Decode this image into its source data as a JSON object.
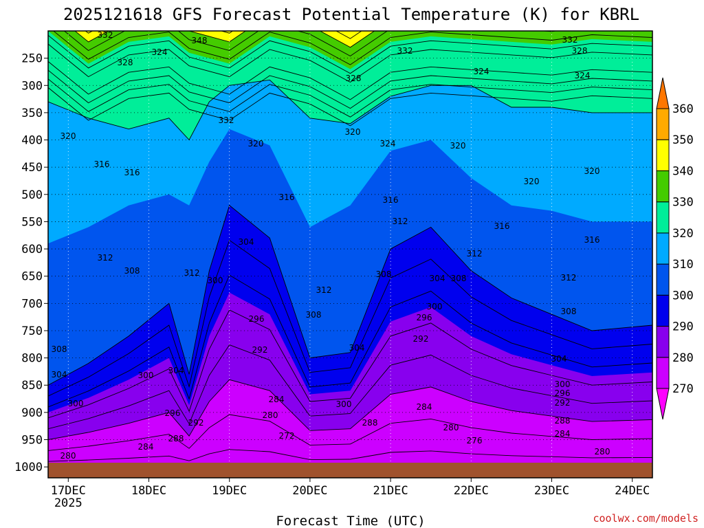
{
  "chart_data": {
    "type": "contour",
    "title": "2025121618 GFS Forecast Potential Temperature (K) for KBRL",
    "xlabel": "Forecast Time (UTC)",
    "ylabel": "",
    "credit": "coolwx.com/models",
    "x_ticks": [
      {
        "label": "17DEC",
        "sublabel": "2025",
        "hour": 6
      },
      {
        "label": "18DEC",
        "hour": 30
      },
      {
        "label": "19DEC",
        "hour": 54
      },
      {
        "label": "20DEC",
        "hour": 78
      },
      {
        "label": "21DEC",
        "hour": 102
      },
      {
        "label": "22DEC",
        "hour": 126
      },
      {
        "label": "23DEC",
        "hour": 150
      },
      {
        "label": "24DEC",
        "hour": 174
      }
    ],
    "xlim_hours": [
      0,
      180
    ],
    "y_ticks": [
      "250",
      "300",
      "350",
      "400",
      "450",
      "500",
      "550",
      "600",
      "650",
      "700",
      "750",
      "800",
      "850",
      "900",
      "950",
      "1000"
    ],
    "ylim_hpa": [
      200,
      1020
    ],
    "colorbar": {
      "levels": [
        "270",
        "280",
        "290",
        "300",
        "310",
        "320",
        "330",
        "340",
        "350",
        "360"
      ],
      "colors": [
        "#ff00ff",
        "#cc00ff",
        "#8800ee",
        "#0000ee",
        "#0055ee",
        "#00aaff",
        "#00ee99",
        "#44cc00",
        "#ffff00",
        "#ffaa00",
        "#ff7700"
      ]
    },
    "contour_interval": 4,
    "fill_interval": 10,
    "profiles": {
      "times": [
        0,
        12,
        24,
        36,
        42,
        48,
        54,
        66,
        78,
        90,
        102,
        114,
        126,
        138,
        150,
        162,
        180
      ],
      "note": "pressure level (hPa) of selected isentropes vs forecast hour",
      "theta_300": [
        850,
        810,
        760,
        700,
        830,
        640,
        520,
        580,
        800,
        790,
        600,
        560,
        640,
        690,
        720,
        750,
        740
      ],
      "theta_310": [
        590,
        560,
        520,
        500,
        520,
        440,
        380,
        410,
        560,
        520,
        420,
        400,
        470,
        520,
        530,
        550,
        550
      ],
      "theta_320": [
        330,
        360,
        380,
        360,
        400,
        330,
        300,
        290,
        360,
        370,
        320,
        300,
        300,
        340,
        340,
        350,
        350
      ],
      "theta_330": [
        200,
        260,
        220,
        210,
        240,
        250,
        260,
        210,
        230,
        270,
        220,
        210,
        215,
        220,
        225,
        215,
        220
      ]
    },
    "contour_labels": [
      {
        "text": "332",
        "x": 153,
        "y": 55
      },
      {
        "text": "324",
        "x": 232,
        "y": 80
      },
      {
        "text": "348",
        "x": 290,
        "y": 63
      },
      {
        "text": "328",
        "x": 182,
        "y": 95
      },
      {
        "text": "332",
        "x": 589,
        "y": 78
      },
      {
        "text": "332",
        "x": 829,
        "y": 62
      },
      {
        "text": "328",
        "x": 843,
        "y": 78
      },
      {
        "text": "324",
        "x": 700,
        "y": 108
      },
      {
        "text": "328",
        "x": 514,
        "y": 118
      },
      {
        "text": "324",
        "x": 847,
        "y": 114
      },
      {
        "text": "332",
        "x": 329,
        "y": 179
      },
      {
        "text": "320",
        "x": 99,
        "y": 202
      },
      {
        "text": "320",
        "x": 513,
        "y": 196
      },
      {
        "text": "324",
        "x": 564,
        "y": 213
      },
      {
        "text": "320",
        "x": 666,
        "y": 216
      },
      {
        "text": "320",
        "x": 372,
        "y": 213
      },
      {
        "text": "316",
        "x": 148,
        "y": 243
      },
      {
        "text": "316",
        "x": 192,
        "y": 255
      },
      {
        "text": "320",
        "x": 773,
        "y": 268
      },
      {
        "text": "320",
        "x": 861,
        "y": 253
      },
      {
        "text": "316",
        "x": 417,
        "y": 291
      },
      {
        "text": "316",
        "x": 568,
        "y": 295
      },
      {
        "text": "312",
        "x": 582,
        "y": 326
      },
      {
        "text": "316",
        "x": 730,
        "y": 333
      },
      {
        "text": "304",
        "x": 358,
        "y": 356
      },
      {
        "text": "316",
        "x": 861,
        "y": 353
      },
      {
        "text": "312",
        "x": 153,
        "y": 379
      },
      {
        "text": "312",
        "x": 690,
        "y": 373
      },
      {
        "text": "308",
        "x": 192,
        "y": 398
      },
      {
        "text": "312",
        "x": 279,
        "y": 401
      },
      {
        "text": "300",
        "x": 313,
        "y": 412
      },
      {
        "text": "308",
        "x": 558,
        "y": 403
      },
      {
        "text": "304",
        "x": 636,
        "y": 409
      },
      {
        "text": "308",
        "x": 667,
        "y": 409
      },
      {
        "text": "312",
        "x": 827,
        "y": 408
      },
      {
        "text": "312",
        "x": 471,
        "y": 426
      },
      {
        "text": "300",
        "x": 632,
        "y": 450
      },
      {
        "text": "308",
        "x": 456,
        "y": 462
      },
      {
        "text": "296",
        "x": 373,
        "y": 468
      },
      {
        "text": "296",
        "x": 617,
        "y": 466
      },
      {
        "text": "308",
        "x": 827,
        "y": 457
      },
      {
        "text": "292",
        "x": 612,
        "y": 497
      },
      {
        "text": "304",
        "x": 519,
        "y": 510
      },
      {
        "text": "308",
        "x": 86,
        "y": 512
      },
      {
        "text": "292",
        "x": 378,
        "y": 513
      },
      {
        "text": "304",
        "x": 813,
        "y": 526
      },
      {
        "text": "304",
        "x": 86,
        "y": 549
      },
      {
        "text": "304",
        "x": 256,
        "y": 543
      },
      {
        "text": "300",
        "x": 212,
        "y": 550
      },
      {
        "text": "300",
        "x": 818,
        "y": 563
      },
      {
        "text": "296",
        "x": 818,
        "y": 576
      },
      {
        "text": "284",
        "x": 402,
        "y": 585
      },
      {
        "text": "300",
        "x": 110,
        "y": 591
      },
      {
        "text": "292",
        "x": 818,
        "y": 590
      },
      {
        "text": "284",
        "x": 617,
        "y": 596
      },
      {
        "text": "300",
        "x": 500,
        "y": 592
      },
      {
        "text": "296",
        "x": 251,
        "y": 605
      },
      {
        "text": "280",
        "x": 393,
        "y": 608
      },
      {
        "text": "288",
        "x": 538,
        "y": 619
      },
      {
        "text": "292",
        "x": 285,
        "y": 619
      },
      {
        "text": "288",
        "x": 818,
        "y": 616
      },
      {
        "text": "280",
        "x": 656,
        "y": 626
      },
      {
        "text": "272",
        "x": 417,
        "y": 638
      },
      {
        "text": "288",
        "x": 256,
        "y": 642
      },
      {
        "text": "284",
        "x": 818,
        "y": 635
      },
      {
        "text": "276",
        "x": 690,
        "y": 645
      },
      {
        "text": "284",
        "x": 212,
        "y": 654
      },
      {
        "text": "280",
        "x": 876,
        "y": 661
      },
      {
        "text": "280",
        "x": 99,
        "y": 667
      }
    ]
  }
}
